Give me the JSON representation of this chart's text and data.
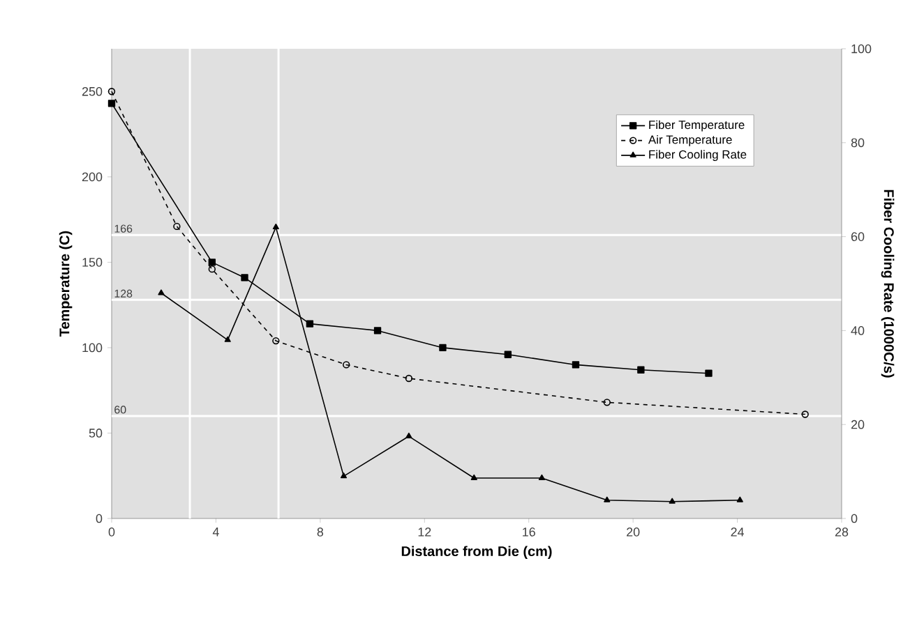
{
  "chart_data": {
    "type": "line",
    "xlabel": "Distance from Die (cm)",
    "ylabel": "Temperature (C)",
    "y2label": "Fiber Cooling Rate (1000C/s)",
    "xlim": [
      0,
      28
    ],
    "xticks": [
      0,
      4,
      8,
      12,
      16,
      20,
      24,
      28
    ],
    "ylim": [
      0,
      275
    ],
    "yticks": [
      0,
      50,
      100,
      150,
      200,
      250
    ],
    "y2lim": [
      0,
      100
    ],
    "y2ticks": [
      0,
      20,
      40,
      60,
      80,
      100
    ],
    "legend": "top right",
    "grid": false,
    "series": [
      {
        "name": "Fiber Temperature",
        "color": "#000000",
        "marker": "square",
        "line_style": "solid",
        "x": [
          0,
          3.85,
          5.1,
          7.6,
          10.2,
          12.7,
          15.2,
          17.8,
          20.3,
          22.9
        ],
        "values": [
          243,
          150,
          141,
          114,
          110,
          100,
          96,
          90,
          87,
          85
        ]
      },
      {
        "name": "Air Temperature",
        "color": "#000000",
        "marker": "circle",
        "line_style": "dashed",
        "x": [
          0,
          2.5,
          3.85,
          6.3,
          9.0,
          11.4,
          19.0,
          26.6
        ],
        "values": [
          250,
          171,
          146,
          104,
          90,
          82,
          68,
          61
        ]
      },
      {
        "name": "Fiber Cooling Rate",
        "color": "#000000",
        "marker": "triangle",
        "line_style": "solid",
        "axis": "y2",
        "x": [
          1.9,
          4.45,
          6.3,
          8.9,
          11.4,
          13.9,
          16.5,
          19.0,
          21.5,
          24.1
        ],
        "values": [
          48,
          38,
          62,
          9,
          17.5,
          8.6,
          8.6,
          3.9,
          3.6,
          3.9
        ]
      }
    ],
    "ref_lines": [
      {
        "axis": "y",
        "value": 166,
        "label": "166",
        "color": "#ffffff"
      },
      {
        "axis": "y",
        "value": 128,
        "label": "128",
        "color": "#ffffff"
      },
      {
        "axis": "y",
        "value": 60,
        "label": "60",
        "color": "#ffffff"
      },
      {
        "axis": "x",
        "value": 3,
        "color": "#ffffff"
      },
      {
        "axis": "x",
        "value": 6.4,
        "color": "#ffffff"
      }
    ]
  }
}
